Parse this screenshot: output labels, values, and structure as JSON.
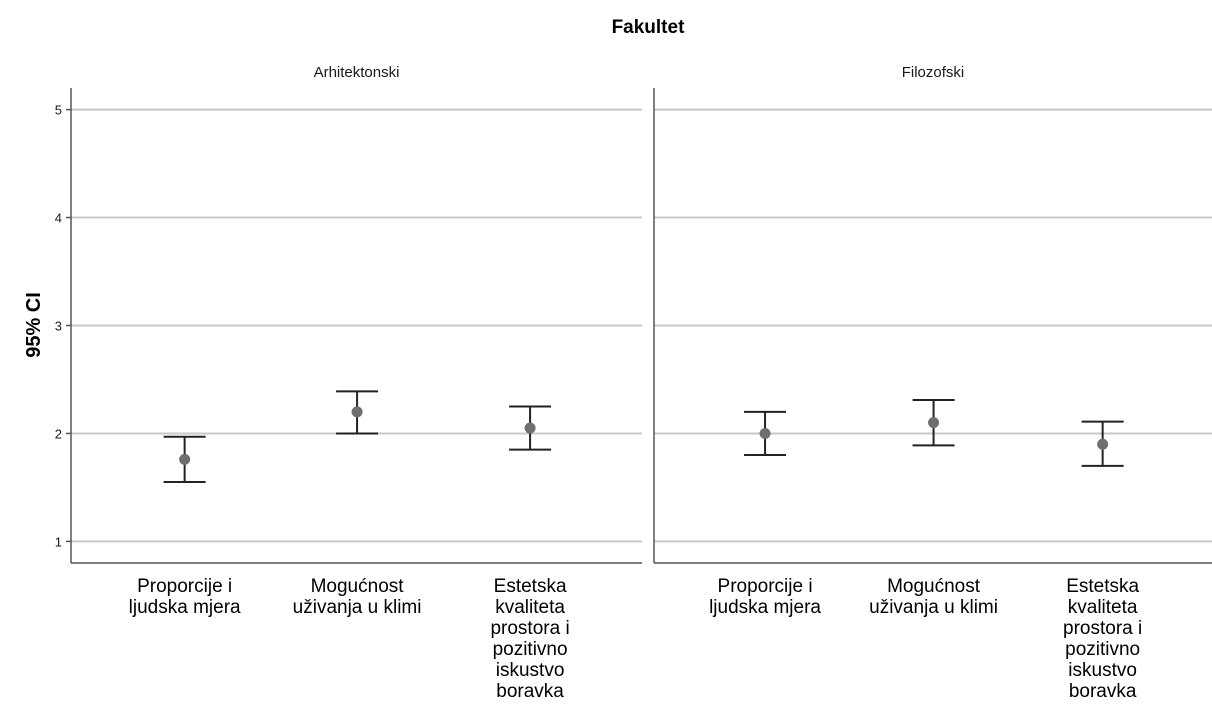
{
  "chart_data": {
    "type": "errorbar",
    "title": "Fakultet",
    "ylabel": "95% CI",
    "xlabel": "",
    "ylim": [
      0.8,
      5.2
    ],
    "yticks": [
      1,
      2,
      3,
      4,
      5
    ],
    "grid": true,
    "categories": [
      [
        "Proporcije i",
        "ljudska mjera"
      ],
      [
        "Mogućnost",
        "uživanja u klimi"
      ],
      [
        "Estetska",
        "kvaliteta",
        "prostora i",
        "pozitivno",
        "iskustvo",
        "boravka"
      ]
    ],
    "panels": [
      {
        "name": "Arhitektonski",
        "means": [
          1.76,
          2.2,
          2.05
        ],
        "lower": [
          1.55,
          2.0,
          1.85
        ],
        "upper": [
          1.97,
          2.39,
          2.25
        ]
      },
      {
        "name": "Filozofski",
        "means": [
          2.0,
          2.1,
          1.9
        ],
        "lower": [
          1.8,
          1.89,
          1.7
        ],
        "upper": [
          2.2,
          2.31,
          2.11
        ]
      }
    ],
    "colors": {
      "grid": "#c8c8c8",
      "axis": "#555555",
      "errorbar": "#222222",
      "point": "#6e6e6e"
    }
  }
}
